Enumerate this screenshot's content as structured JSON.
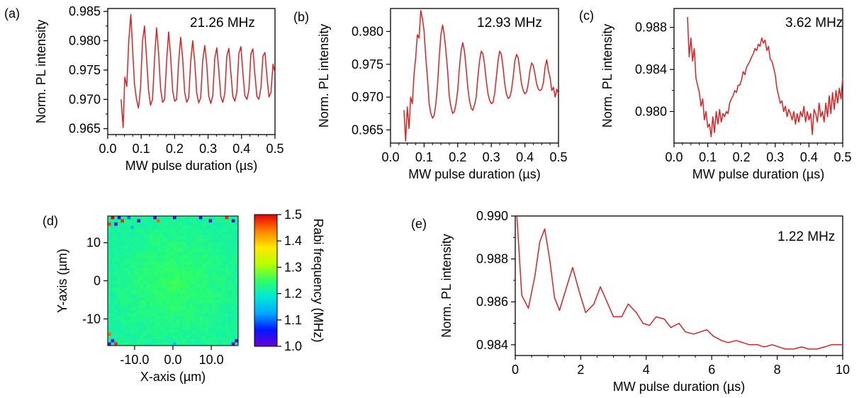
{
  "chart_data": [
    {
      "panel_label": "(a)",
      "type": "line",
      "annotation": "21.26 MHz",
      "xlabel": "MW pulse duration (µs)",
      "ylabel": "Norm. PL intensity",
      "xlim": [
        0.0,
        0.5
      ],
      "ylim": [
        0.964,
        0.9855
      ],
      "xticks": [
        "0.0",
        "0.1",
        "0.2",
        "0.3",
        "0.4",
        "0.5"
      ],
      "yticks": [
        "0.965",
        "0.970",
        "0.975",
        "0.980",
        "0.985"
      ],
      "series": [
        {
          "color": "#e02020",
          "x": [
            0.04,
            0.046,
            0.051,
            0.057,
            0.063,
            0.069,
            0.074,
            0.08,
            0.086,
            0.092,
            0.098,
            0.104,
            0.11,
            0.116,
            0.122,
            0.128,
            0.134,
            0.14,
            0.146,
            0.152,
            0.158,
            0.164,
            0.17,
            0.176,
            0.182,
            0.188,
            0.194,
            0.2,
            0.206,
            0.212,
            0.218,
            0.224,
            0.23,
            0.236,
            0.242,
            0.248,
            0.254,
            0.26,
            0.266,
            0.272,
            0.278,
            0.284,
            0.29,
            0.296,
            0.302,
            0.308,
            0.314,
            0.32,
            0.326,
            0.332,
            0.338,
            0.344,
            0.35,
            0.356,
            0.362,
            0.368,
            0.374,
            0.38,
            0.386,
            0.392,
            0.398,
            0.404,
            0.41,
            0.416,
            0.422,
            0.428,
            0.434,
            0.44,
            0.446,
            0.452,
            0.458,
            0.464,
            0.47,
            0.476,
            0.482,
            0.488,
            0.494,
            0.5
          ],
          "y": [
            0.97,
            0.9652,
            0.9738,
            0.9722,
            0.98,
            0.9845,
            0.979,
            0.9725,
            0.97,
            0.9685,
            0.972,
            0.98,
            0.9825,
            0.977,
            0.9715,
            0.969,
            0.97,
            0.977,
            0.9822,
            0.978,
            0.9718,
            0.9695,
            0.97,
            0.9765,
            0.9815,
            0.9775,
            0.9715,
            0.9697,
            0.97,
            0.9765,
            0.9806,
            0.977,
            0.9712,
            0.9695,
            0.9702,
            0.9765,
            0.98,
            0.9765,
            0.971,
            0.9694,
            0.9703,
            0.9766,
            0.9792,
            0.976,
            0.9706,
            0.9693,
            0.9706,
            0.977,
            0.9788,
            0.975,
            0.9705,
            0.9695,
            0.971,
            0.9774,
            0.9787,
            0.9746,
            0.9705,
            0.9697,
            0.9713,
            0.9778,
            0.979,
            0.9745,
            0.9706,
            0.97,
            0.9716,
            0.9778,
            0.9786,
            0.9742,
            0.9705,
            0.97,
            0.972,
            0.9774,
            0.978,
            0.9738,
            0.9704,
            0.9712,
            0.976,
            0.9745
          ]
        }
      ]
    },
    {
      "panel_label": "(b)",
      "type": "line",
      "annotation": "12.93 MHz",
      "xlabel": "MW pulse duration (µs)",
      "ylabel": "Norm. PL intensity",
      "xlim": [
        0.0,
        0.5
      ],
      "ylim": [
        0.963,
        0.9835
      ],
      "xticks": [
        "0.0",
        "0.1",
        "0.2",
        "0.3",
        "0.4",
        "0.5"
      ],
      "yticks": [
        "0.965",
        "0.970",
        "0.975",
        "0.980"
      ],
      "series": [
        {
          "color": "#e02020",
          "x": [
            0.04,
            0.045,
            0.05,
            0.055,
            0.06,
            0.065,
            0.07,
            0.075,
            0.08,
            0.085,
            0.09,
            0.095,
            0.1,
            0.105,
            0.11,
            0.115,
            0.12,
            0.125,
            0.13,
            0.135,
            0.14,
            0.145,
            0.15,
            0.155,
            0.16,
            0.165,
            0.17,
            0.175,
            0.18,
            0.185,
            0.19,
            0.195,
            0.2,
            0.205,
            0.21,
            0.215,
            0.22,
            0.225,
            0.23,
            0.235,
            0.24,
            0.245,
            0.25,
            0.255,
            0.26,
            0.265,
            0.27,
            0.275,
            0.28,
            0.285,
            0.29,
            0.295,
            0.3,
            0.305,
            0.31,
            0.315,
            0.32,
            0.325,
            0.33,
            0.335,
            0.34,
            0.345,
            0.35,
            0.355,
            0.36,
            0.365,
            0.37,
            0.375,
            0.38,
            0.385,
            0.39,
            0.395,
            0.4,
            0.405,
            0.41,
            0.415,
            0.42,
            0.425,
            0.43,
            0.435,
            0.44,
            0.445,
            0.45,
            0.455,
            0.46,
            0.465,
            0.47,
            0.475,
            0.48,
            0.485,
            0.49,
            0.495,
            0.5
          ],
          "y": [
            0.968,
            0.9633,
            0.9685,
            0.9652,
            0.97,
            0.969,
            0.9735,
            0.976,
            0.9795,
            0.979,
            0.9832,
            0.982,
            0.98,
            0.976,
            0.973,
            0.969,
            0.9675,
            0.9668,
            0.9672,
            0.969,
            0.972,
            0.976,
            0.9795,
            0.981,
            0.9795,
            0.977,
            0.974,
            0.97,
            0.9685,
            0.9675,
            0.9678,
            0.969,
            0.971,
            0.9745,
            0.977,
            0.9783,
            0.977,
            0.9745,
            0.9715,
            0.9695,
            0.9683,
            0.968,
            0.9688,
            0.97,
            0.973,
            0.9755,
            0.977,
            0.9766,
            0.975,
            0.9725,
            0.9705,
            0.9695,
            0.969,
            0.9692,
            0.9705,
            0.973,
            0.9755,
            0.977,
            0.9765,
            0.9745,
            0.972,
            0.9705,
            0.9698,
            0.97,
            0.971,
            0.973,
            0.9755,
            0.9765,
            0.976,
            0.974,
            0.972,
            0.971,
            0.9705,
            0.9708,
            0.972,
            0.974,
            0.9752,
            0.9748,
            0.9735,
            0.972,
            0.9712,
            0.971,
            0.9712,
            0.9722,
            0.9745,
            0.9757,
            0.974,
            0.973,
            0.971,
            0.9715,
            0.97,
            0.9712,
            0.9705
          ]
        }
      ]
    },
    {
      "panel_label": "(c)",
      "type": "line",
      "annotation": "3.62 MHz",
      "xlabel": "MW pulse duration (µs)",
      "ylabel": "Norm. PL intensity",
      "xlim": [
        0.0,
        0.5
      ],
      "ylim": [
        0.977,
        0.9898
      ],
      "xticks": [
        "0.0",
        "0.1",
        "0.2",
        "0.3",
        "0.4",
        "0.5"
      ],
      "yticks": [
        "0.980",
        "0.984",
        "0.988"
      ],
      "series": [
        {
          "color": "#e02020",
          "x": [
            0.04,
            0.045,
            0.05,
            0.055,
            0.06,
            0.065,
            0.07,
            0.075,
            0.08,
            0.085,
            0.09,
            0.095,
            0.1,
            0.105,
            0.11,
            0.115,
            0.12,
            0.125,
            0.13,
            0.135,
            0.14,
            0.145,
            0.15,
            0.155,
            0.16,
            0.165,
            0.17,
            0.175,
            0.18,
            0.185,
            0.19,
            0.195,
            0.2,
            0.205,
            0.21,
            0.215,
            0.22,
            0.225,
            0.23,
            0.235,
            0.24,
            0.245,
            0.25,
            0.255,
            0.26,
            0.265,
            0.27,
            0.275,
            0.28,
            0.285,
            0.29,
            0.295,
            0.3,
            0.305,
            0.31,
            0.315,
            0.32,
            0.325,
            0.33,
            0.335,
            0.34,
            0.345,
            0.35,
            0.355,
            0.36,
            0.365,
            0.37,
            0.375,
            0.38,
            0.385,
            0.39,
            0.395,
            0.4,
            0.405,
            0.41,
            0.415,
            0.42,
            0.425,
            0.43,
            0.435,
            0.44,
            0.445,
            0.45,
            0.455,
            0.46,
            0.465,
            0.47,
            0.475,
            0.48,
            0.485,
            0.49,
            0.495,
            0.5
          ],
          "y": [
            0.989,
            0.9852,
            0.987,
            0.9848,
            0.986,
            0.9832,
            0.9825,
            0.9818,
            0.9805,
            0.9812,
            0.9792,
            0.98,
            0.9785,
            0.9788,
            0.9776,
            0.9795,
            0.978,
            0.98,
            0.9788,
            0.9802,
            0.979,
            0.9798,
            0.9795,
            0.98,
            0.9798,
            0.9808,
            0.9812,
            0.9815,
            0.982,
            0.9818,
            0.9825,
            0.9825,
            0.983,
            0.9838,
            0.9835,
            0.9842,
            0.9845,
            0.9848,
            0.9852,
            0.9855,
            0.986,
            0.9858,
            0.9864,
            0.9862,
            0.987,
            0.9865,
            0.9868,
            0.9858,
            0.9862,
            0.985,
            0.9848,
            0.9842,
            0.9835,
            0.9822,
            0.9815,
            0.9808,
            0.981,
            0.98,
            0.9805,
            0.9795,
            0.9802,
            0.9798,
            0.9792,
            0.98,
            0.9788,
            0.9798,
            0.979,
            0.98,
            0.9795,
            0.9805,
            0.979,
            0.98,
            0.9792,
            0.9798,
            0.9778,
            0.9802,
            0.9798,
            0.979,
            0.9808,
            0.9795,
            0.98,
            0.979,
            0.9808,
            0.9795,
            0.9815,
            0.9798,
            0.9818,
            0.9802,
            0.982,
            0.9808,
            0.9822,
            0.9812,
            0.9832
          ]
        }
      ]
    },
    {
      "panel_label": "(d)",
      "type": "heatmap",
      "xlabel": "X-axis (µm)",
      "ylabel": "Y-axis (µm)",
      "xlim": [
        -17,
        17
      ],
      "ylim": [
        -17,
        17
      ],
      "xticks": [
        "-10.0",
        "0.0",
        "10.0"
      ],
      "yticks": [
        "10",
        "0",
        "-10"
      ],
      "colorbar": {
        "label": "Rabi frequency (MHz)",
        "range": [
          1.0,
          1.5
        ],
        "ticks": [
          "1.5",
          "1.4",
          "1.3",
          "1.2",
          "1.1",
          "1.0"
        ],
        "colors": [
          "#6a00d8",
          "#0018ff",
          "#00a8ff",
          "#00e8d8",
          "#30ff60",
          "#b8ff00",
          "#ffe800",
          "#ff8000",
          "#e80000"
        ]
      },
      "grid_size": 40,
      "base_value": 1.22,
      "center_value": 1.25,
      "outliers": [
        {
          "col": 1,
          "row": 0,
          "value": 1.5
        },
        {
          "col": 3,
          "row": 0,
          "value": 1.05
        },
        {
          "col": 4,
          "row": 1,
          "value": 1.48
        },
        {
          "col": 6,
          "row": 0,
          "value": 1.1
        },
        {
          "col": 9,
          "row": 1,
          "value": 1.02
        },
        {
          "col": 14,
          "row": 0,
          "value": 1.0
        },
        {
          "col": 15,
          "row": 1,
          "value": 1.45
        },
        {
          "col": 20,
          "row": 0,
          "value": 1.0
        },
        {
          "col": 28,
          "row": 0,
          "value": 1.03
        },
        {
          "col": 31,
          "row": 1,
          "value": 1.0
        },
        {
          "col": 36,
          "row": 0,
          "value": 1.48
        },
        {
          "col": 38,
          "row": 1,
          "value": 1.01
        },
        {
          "col": 0,
          "row": 2,
          "value": 1.47
        },
        {
          "col": 2,
          "row": 2,
          "value": 1.0
        },
        {
          "col": 7,
          "row": 3,
          "value": 1.15
        },
        {
          "col": 0,
          "row": 36,
          "value": 1.45
        },
        {
          "col": 1,
          "row": 38,
          "value": 1.05
        },
        {
          "col": 0,
          "row": 39,
          "value": 1.0
        },
        {
          "col": 2,
          "row": 39,
          "value": 1.48
        },
        {
          "col": 38,
          "row": 39,
          "value": 1.0
        },
        {
          "col": 39,
          "row": 38,
          "value": 1.02
        },
        {
          "col": 20,
          "row": 39,
          "value": 1.15
        }
      ]
    },
    {
      "panel_label": "(e)",
      "type": "line",
      "annotation": "1.22 MHz",
      "xlabel": "MW pulse duration (µs)",
      "ylabel": "Norm. PL intensity",
      "xlim": [
        0,
        10
      ],
      "ylim": [
        0.9835,
        0.99
      ],
      "xticks": [
        "0",
        "2",
        "4",
        "6",
        "8",
        "10"
      ],
      "yticks": [
        "0.984",
        "0.986",
        "0.988",
        "0.990"
      ],
      "series": [
        {
          "color": "#e02020",
          "x": [
            0.05,
            0.2,
            0.4,
            0.6,
            0.75,
            0.9,
            1.05,
            1.2,
            1.35,
            1.55,
            1.75,
            1.95,
            2.15,
            2.4,
            2.6,
            2.8,
            3.0,
            3.25,
            3.45,
            3.7,
            3.9,
            4.1,
            4.3,
            4.55,
            4.75,
            5.0,
            5.2,
            5.45,
            5.65,
            5.85,
            6.05,
            6.3,
            6.5,
            6.75,
            6.95,
            7.15,
            7.4,
            7.6,
            7.85,
            8.05,
            8.25,
            8.5,
            8.75,
            8.95,
            9.2,
            9.45,
            9.65,
            9.85,
            10.0
          ],
          "y": [
            0.99,
            0.9863,
            0.9857,
            0.9872,
            0.9888,
            0.9894,
            0.988,
            0.9862,
            0.9856,
            0.9866,
            0.9876,
            0.9865,
            0.9855,
            0.9859,
            0.9867,
            0.986,
            0.9853,
            0.9853,
            0.9859,
            0.9855,
            0.985,
            0.9849,
            0.9853,
            0.9852,
            0.9848,
            0.985,
            0.9846,
            0.9845,
            0.9846,
            0.9847,
            0.9844,
            0.9842,
            0.9841,
            0.9842,
            0.9841,
            0.984,
            0.984,
            0.9839,
            0.984,
            0.9839,
            0.9838,
            0.9838,
            0.9839,
            0.9838,
            0.9838,
            0.9839,
            0.984,
            0.984,
            0.984
          ]
        }
      ]
    }
  ]
}
